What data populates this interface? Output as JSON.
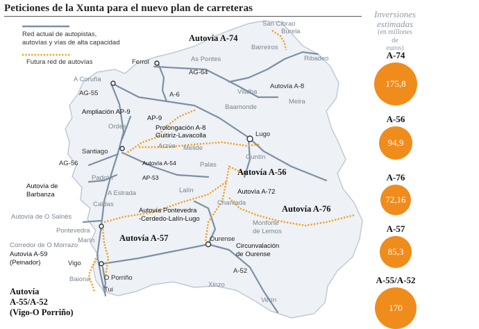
{
  "title": "Peticiones de la Xunta para el nuevo plan de carreteras",
  "legend": {
    "current_line1": "Red actual de autopistas,",
    "current_line2": "autovías y vías de alta capacidad",
    "future": "Futura red de autovías"
  },
  "colors": {
    "current_road": "#7d8fa5",
    "future_road": "#f0a020",
    "circle": "#f08c1c",
    "land": "#eef1f5",
    "sea": "#ffffff"
  },
  "side": {
    "heading1": "Inversiones",
    "heading2": "estimadas",
    "unit1": "(en millones",
    "unit2": "de",
    "unit3": "euros)",
    "investments": [
      {
        "name": "A-74",
        "value": "175,8",
        "amount": 175.8
      },
      {
        "name": "A-56",
        "value": "94,9",
        "amount": 94.9
      },
      {
        "name": "A-76",
        "value": "72,16",
        "amount": 72.16
      },
      {
        "name": "A-57",
        "value": "85,3",
        "amount": 85.3
      },
      {
        "name": "A-55/A-52",
        "value": "170",
        "amount": 170
      }
    ]
  },
  "towns": {
    "san_cibrao": "San Cibrao",
    "burela": "Burela",
    "barreiros": "Barreiros",
    "ribadeo": "Ribadeo",
    "ferrol": "Ferrol",
    "as_pontes": "As Pontes",
    "a_coruna": "A Coruña",
    "vilalba": "Vilalba",
    "baamonde": "Baamonde",
    "meira": "Meira",
    "ordes": "Ordes",
    "lugo": "Lugo",
    "santiago": "Santiago",
    "argua": "Arzúa",
    "melide": "Melide",
    "guntin": "Guntín",
    "palas": "Palas",
    "padron": "Padrón",
    "lalin": "Lalín",
    "a_estrada": "A Estrada",
    "caldas": "Caldas",
    "chantada": "Chantada",
    "pontevedra": "Pontevedra",
    "monforte1": "Monforte",
    "monforte2": "de Lemos",
    "marin": "Marín",
    "ourense": "Ourense",
    "vigo": "Vigo",
    "baiona": "Baiona",
    "porrino": "O Porriño",
    "tui": "Tui",
    "xinzo": "Xinzo",
    "verin": "Verín",
    "salnes": "Autovía de O Salnés",
    "morrazo": "Corredor de O Morrazo"
  },
  "roads": {
    "a74": "Autovía A-74",
    "ag64": "AG-64",
    "a8": "Autovía A-8",
    "ag55": "AG-55",
    "a6": "A-6",
    "ap9_ext": "Ampliación AP-9",
    "ap9": "AP-9",
    "prolong1": "Prolongación A-8",
    "prolong2": "Guitiriz-Lavacolla",
    "ag56": "AG-56",
    "a54": "Autovía A-54",
    "a56": "Autovía A-56",
    "ap53": "AP-53",
    "barbanza1": "Autovía de",
    "barbanza2": "Barbanza",
    "a72": "Autovía A-72",
    "a76": "Autovía A-76",
    "ponte1": "Autovía Pontevedra",
    "ponte2": "-Cerdedo-Lalín-Lugo",
    "a57": "Autovía A-57",
    "a59_1": "Autovía A-59",
    "a59_2": "(Peinador)",
    "circ1": "Circunvalación",
    "circ2": "de Ourense",
    "a52": "A-52",
    "a55_1": "Autovía",
    "a55_2": "A-55/A-52",
    "a55_3": "(Vigo-O Porriño)"
  }
}
